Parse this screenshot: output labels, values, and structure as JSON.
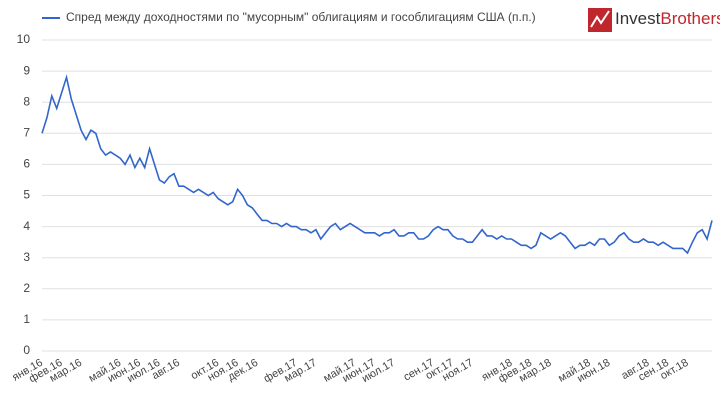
{
  "logo": [
    "Invest",
    "Brothers"
  ],
  "chart_data": {
    "type": "line",
    "categories": [
      "янв.16",
      null,
      null,
      null,
      "фев.16",
      null,
      null,
      null,
      "мар.16",
      null,
      null,
      null,
      null,
      null,
      null,
      null,
      "май.16",
      null,
      null,
      null,
      "июн.16",
      null,
      null,
      null,
      "июл.16",
      null,
      null,
      null,
      "авг.16",
      null,
      null,
      null,
      null,
      null,
      null,
      null,
      "окт.16",
      null,
      null,
      null,
      "ноя.16",
      null,
      null,
      null,
      "дек.16",
      null,
      null,
      null,
      null,
      null,
      null,
      null,
      "фев.17",
      null,
      null,
      null,
      "мар.17",
      null,
      null,
      null,
      null,
      null,
      null,
      null,
      "май.17",
      null,
      null,
      null,
      "июн.17",
      null,
      null,
      null,
      "июл.17",
      null,
      null,
      null,
      null,
      null,
      null,
      null,
      "сен.17",
      null,
      null,
      null,
      "окт.17",
      null,
      null,
      null,
      "ноя.17",
      null,
      null,
      null,
      null,
      null,
      null,
      null,
      "янв.18",
      null,
      null,
      null,
      "фев.18",
      null,
      null,
      null,
      "мар.18",
      null,
      null,
      null,
      null,
      null,
      null,
      null,
      "май.18",
      null,
      null,
      null,
      "июн.18",
      null,
      null,
      null,
      null,
      null,
      null,
      null,
      "авг.18",
      null,
      null,
      null,
      "сен.18",
      null,
      null,
      null,
      "окт.18",
      null,
      null,
      null,
      null,
      null
    ],
    "series": [
      {
        "name": "Спред между доходностями по \"мусорным\" облигациям и гособлигациям США (п.п.)",
        "color": "#3366cc",
        "values": [
          7.0,
          7.5,
          8.2,
          7.8,
          8.3,
          8.8,
          8.1,
          7.6,
          7.1,
          6.8,
          7.1,
          7.0,
          6.5,
          6.3,
          6.4,
          6.3,
          6.2,
          6.0,
          6.3,
          5.9,
          6.2,
          5.9,
          6.5,
          6.0,
          5.5,
          5.4,
          5.6,
          5.7,
          5.3,
          5.3,
          5.2,
          5.1,
          5.2,
          5.1,
          5.0,
          5.1,
          4.9,
          4.8,
          4.7,
          4.8,
          5.2,
          5.0,
          4.7,
          4.6,
          4.4,
          4.2,
          4.2,
          4.1,
          4.1,
          4.0,
          4.1,
          4.0,
          4.0,
          3.9,
          3.9,
          3.8,
          3.9,
          3.6,
          3.8,
          4.0,
          4.1,
          3.9,
          4.0,
          4.1,
          4.0,
          3.9,
          3.8,
          3.8,
          3.8,
          3.7,
          3.8,
          3.8,
          3.9,
          3.7,
          3.7,
          3.8,
          3.8,
          3.6,
          3.6,
          3.7,
          3.9,
          4.0,
          3.9,
          3.9,
          3.7,
          3.6,
          3.6,
          3.5,
          3.5,
          3.7,
          3.9,
          3.7,
          3.7,
          3.6,
          3.7,
          3.6,
          3.6,
          3.5,
          3.4,
          3.4,
          3.3,
          3.4,
          3.8,
          3.7,
          3.6,
          3.7,
          3.8,
          3.7,
          3.5,
          3.3,
          3.4,
          3.4,
          3.5,
          3.4,
          3.6,
          3.6,
          3.4,
          3.5,
          3.7,
          3.8,
          3.6,
          3.5,
          3.5,
          3.6,
          3.5,
          3.5,
          3.4,
          3.5,
          3.4,
          3.3,
          3.3,
          3.3,
          3.15,
          3.5,
          3.8,
          3.9,
          3.6,
          4.2
        ]
      }
    ],
    "ylim": [
      0,
      10
    ],
    "yticks": [
      0,
      1,
      2,
      3,
      4,
      5,
      6,
      7,
      8,
      9,
      10
    ],
    "grid": true
  }
}
